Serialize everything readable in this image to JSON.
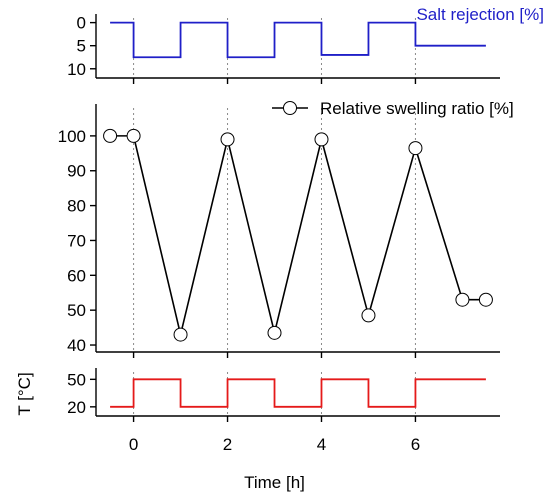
{
  "colors": {
    "salt_rejection": "#1f1fc8",
    "swelling": "#000000",
    "temperature": "#e51a1a"
  },
  "chart_data": [
    {
      "type": "line",
      "panel": "top",
      "title": "Salt rejection [%]",
      "x": [
        -0.5,
        0,
        0,
        1,
        1,
        2,
        2,
        3,
        3,
        4,
        4,
        5,
        5,
        6,
        6,
        7.5
      ],
      "y": [
        0,
        0,
        7.5,
        7.5,
        0,
        0,
        7.5,
        7.5,
        0,
        0,
        7,
        7,
        0,
        0,
        5,
        5
      ],
      "ylim": [
        12,
        -1
      ],
      "yticks": [
        0,
        5,
        10
      ],
      "yticklabels": [
        "0",
        "5",
        "10"
      ]
    },
    {
      "type": "line",
      "panel": "middle",
      "series": [
        {
          "name": "Relative swelling ratio [%]",
          "x": [
            -0.5,
            0,
            1,
            2,
            3,
            4,
            5,
            6,
            7,
            7.5
          ],
          "values": [
            100,
            100,
            43,
            99,
            43.5,
            99,
            48.5,
            96.5,
            53,
            53
          ]
        }
      ],
      "ylim": [
        38,
        108
      ],
      "yticks": [
        40,
        50,
        60,
        70,
        80,
        90,
        100
      ],
      "yticklabels": [
        "40",
        "50",
        "60",
        "70",
        "80",
        "90",
        "100"
      ]
    },
    {
      "type": "line",
      "panel": "bottom",
      "ylabel": "T [°C]",
      "xlabel": "Time [h]",
      "x": [
        -0.5,
        0,
        0,
        1,
        1,
        2,
        2,
        3,
        3,
        4,
        4,
        5,
        5,
        6,
        6,
        7.5
      ],
      "y": [
        20,
        20,
        50,
        50,
        20,
        20,
        50,
        50,
        20,
        20,
        50,
        50,
        20,
        20,
        50,
        50
      ],
      "ylim": [
        10,
        58
      ],
      "yticks": [
        20,
        50
      ],
      "yticklabels": [
        "20",
        "50"
      ],
      "xlim": [
        -0.8,
        7.8
      ],
      "xticks": [
        0,
        2,
        4,
        6
      ],
      "xticklabels": [
        "0",
        "2",
        "4",
        "6"
      ]
    }
  ]
}
